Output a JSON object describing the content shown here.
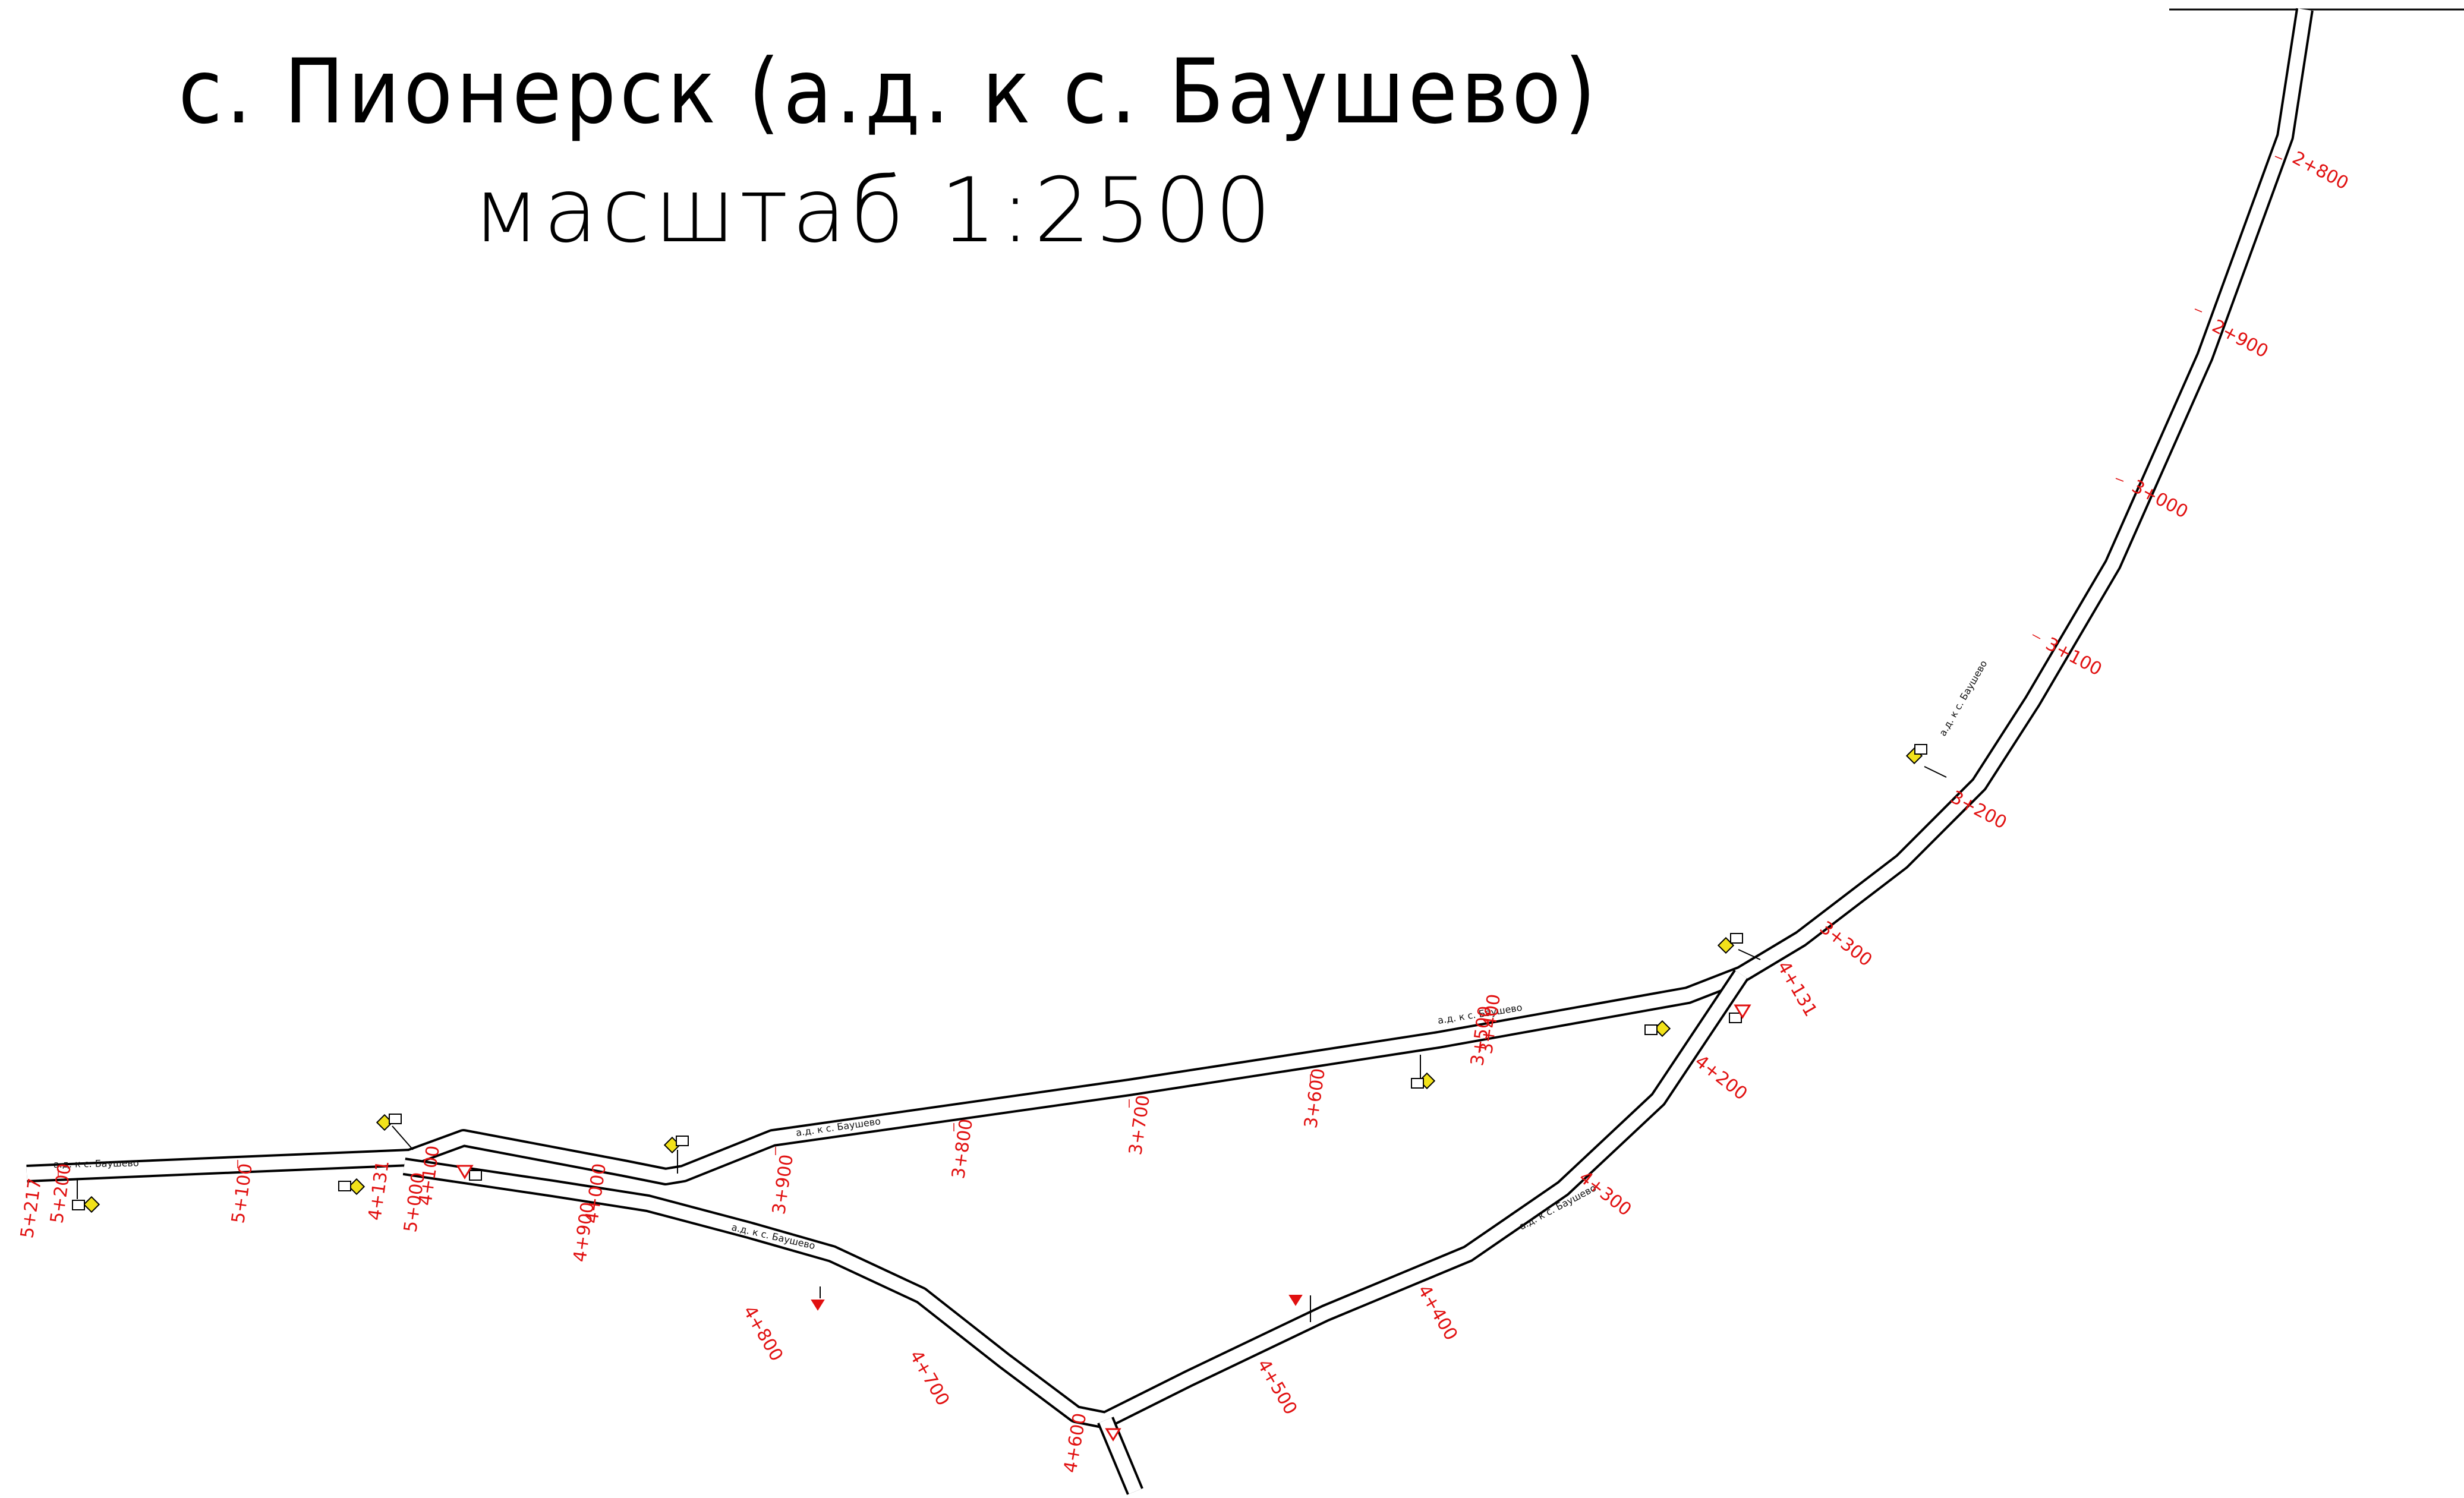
{
  "title": "с. Пионерск (а.д. к с. Баушево)",
  "scale": "масштаб 1:2500",
  "road_name": "а.д. к с. Баушево",
  "colors": {
    "road": "#000000",
    "chainage": "#e11010",
    "priority_sign": "#f2e21a",
    "background": "#ffffff"
  },
  "chainage_labels": [
    "2+800",
    "2+900",
    "3+000",
    "3+100",
    "3+200",
    "3+300",
    "4+131",
    "3+400",
    "3+500",
    "3+600",
    "3+700",
    "3+800",
    "3+900",
    "4+000",
    "4+100",
    "4+131",
    "5+000",
    "5+100",
    "5+200",
    "5+217",
    "4+200",
    "4+300",
    "4+400",
    "4+500",
    "4+600",
    "4+700",
    "4+800",
    "4+900"
  ],
  "signs": [
    {
      "type": "priority-road-sign",
      "icon": "diamond-icon"
    },
    {
      "type": "give-way-sign",
      "icon": "triangle-icon"
    },
    {
      "type": "direction-sign",
      "icon": "plate-icon"
    }
  ]
}
